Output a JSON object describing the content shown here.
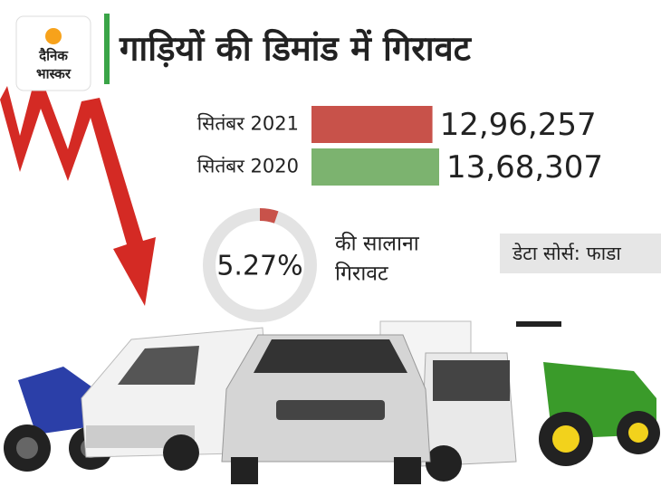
{
  "logo": {
    "line1": "दैनिक",
    "line2": "भास्कर"
  },
  "title": "गाड़ियों की डिमांड में गिरावट",
  "source": "डेटा सोर्स: फाडा",
  "chart_data": [
    {
      "type": "bar",
      "categories": [
        "सितंबर 2021",
        "सितंबर 2020"
      ],
      "values": [
        1296257,
        1368307
      ],
      "value_labels": [
        "12,96,257",
        "13,68,307"
      ],
      "colors": [
        "#c8524a",
        "#7cb36f"
      ]
    },
    {
      "type": "donut",
      "values": [
        5.27
      ],
      "value_labels": [
        "5.27%"
      ],
      "color": "#c8524a",
      "track_color": "#e3e3e3",
      "caption": [
        "की सालाना",
        "गिरावट"
      ]
    }
  ]
}
